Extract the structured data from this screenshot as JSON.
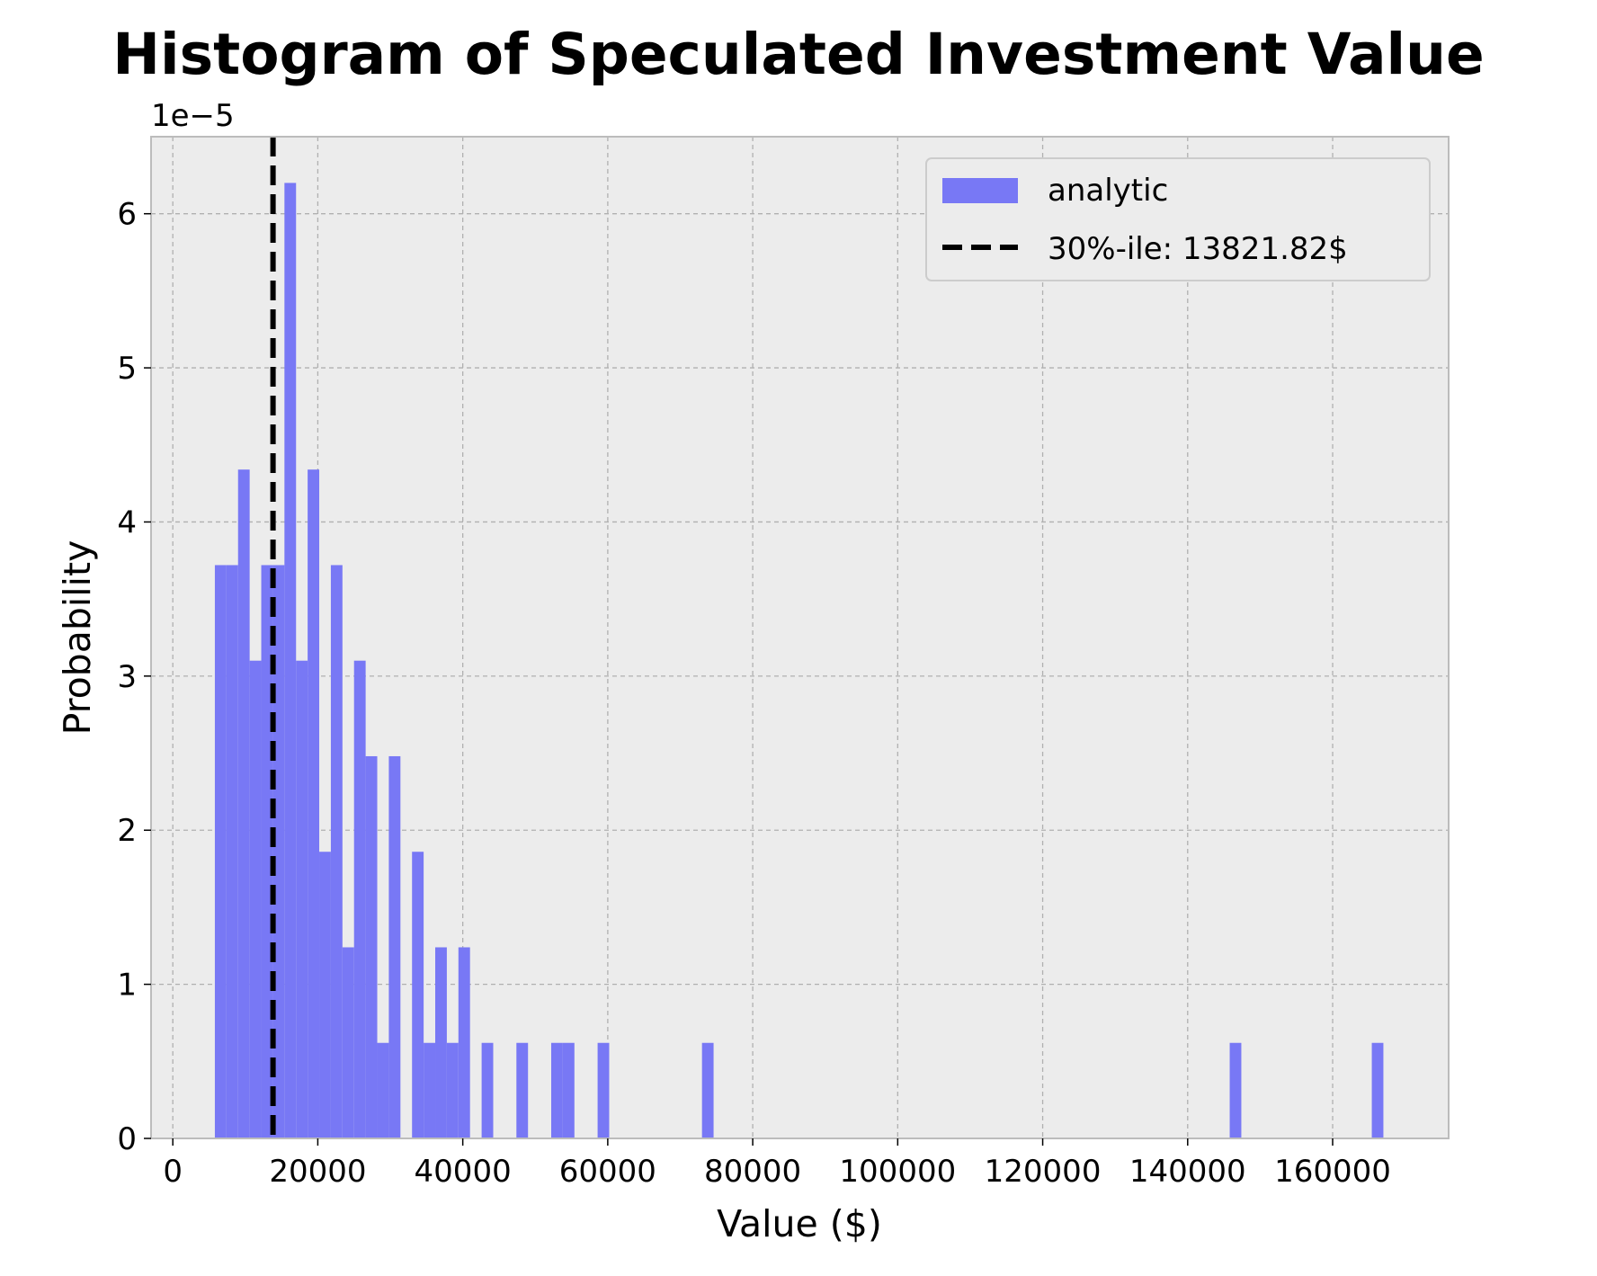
{
  "chart_data": {
    "type": "bar",
    "title": "Histogram of Speculated Investment Value",
    "xlabel": "Value ($)",
    "ylabel": "Probability",
    "y_offset_label": "1e−5",
    "y_scale": 1e-05,
    "xlim": [
      -3000,
      176000
    ],
    "ylim": [
      0,
      6.5
    ],
    "x_ticks": [
      0,
      20000,
      40000,
      60000,
      80000,
      100000,
      120000,
      140000,
      160000
    ],
    "x_tick_labels": [
      "0",
      "20000",
      "40000",
      "60000",
      "80000",
      "100000",
      "120000",
      "140000",
      "160000"
    ],
    "y_ticks": [
      0,
      1,
      2,
      3,
      4,
      5,
      6
    ],
    "y_tick_labels": [
      "0",
      "1",
      "2",
      "3",
      "4",
      "5",
      "6"
    ],
    "grid": true,
    "legend_position": "top-right",
    "colors": {
      "bars": "#7878f5",
      "plot_bg": "#ececec",
      "grid": "#b0b0b0",
      "spine": "#bcbcbc",
      "percentile_line": "#000000"
    },
    "series": [
      {
        "name": "analytic",
        "bin_width": 1600,
        "bins": [
          {
            "x0": 5800,
            "x1": 7400,
            "value": 3.72
          },
          {
            "x0": 7400,
            "x1": 9000,
            "value": 3.72
          },
          {
            "x0": 9000,
            "x1": 10600,
            "value": 4.34
          },
          {
            "x0": 10600,
            "x1": 12200,
            "value": 3.1
          },
          {
            "x0": 12200,
            "x1": 13800,
            "value": 3.72
          },
          {
            "x0": 13800,
            "x1": 15400,
            "value": 3.72
          },
          {
            "x0": 15400,
            "x1": 17000,
            "value": 6.2
          },
          {
            "x0": 17000,
            "x1": 18600,
            "value": 3.1
          },
          {
            "x0": 18600,
            "x1": 20200,
            "value": 4.34
          },
          {
            "x0": 20200,
            "x1": 21800,
            "value": 1.86
          },
          {
            "x0": 21800,
            "x1": 23400,
            "value": 3.72
          },
          {
            "x0": 23400,
            "x1": 25000,
            "value": 1.24
          },
          {
            "x0": 25000,
            "x1": 26600,
            "value": 3.1
          },
          {
            "x0": 26600,
            "x1": 28200,
            "value": 2.48
          },
          {
            "x0": 28200,
            "x1": 29800,
            "value": 0.62
          },
          {
            "x0": 29800,
            "x1": 31400,
            "value": 2.48
          },
          {
            "x0": 33000,
            "x1": 34600,
            "value": 1.86
          },
          {
            "x0": 34600,
            "x1": 36200,
            "value": 0.62
          },
          {
            "x0": 36200,
            "x1": 37800,
            "value": 1.24
          },
          {
            "x0": 37800,
            "x1": 39400,
            "value": 0.62
          },
          {
            "x0": 39400,
            "x1": 41000,
            "value": 1.24
          },
          {
            "x0": 42600,
            "x1": 44200,
            "value": 0.62
          },
          {
            "x0": 47400,
            "x1": 49000,
            "value": 0.62
          },
          {
            "x0": 52200,
            "x1": 53800,
            "value": 0.62
          },
          {
            "x0": 53800,
            "x1": 55400,
            "value": 0.62
          },
          {
            "x0": 58600,
            "x1": 60200,
            "value": 0.62
          },
          {
            "x0": 73000,
            "x1": 74600,
            "value": 0.62
          },
          {
            "x0": 145800,
            "x1": 147400,
            "value": 0.62
          },
          {
            "x0": 165400,
            "x1": 167000,
            "value": 0.62
          }
        ]
      },
      {
        "name": "30%-ile: 13821.82$",
        "kind": "vertical-line",
        "x": 13821.82,
        "style": "dashed"
      }
    ]
  }
}
